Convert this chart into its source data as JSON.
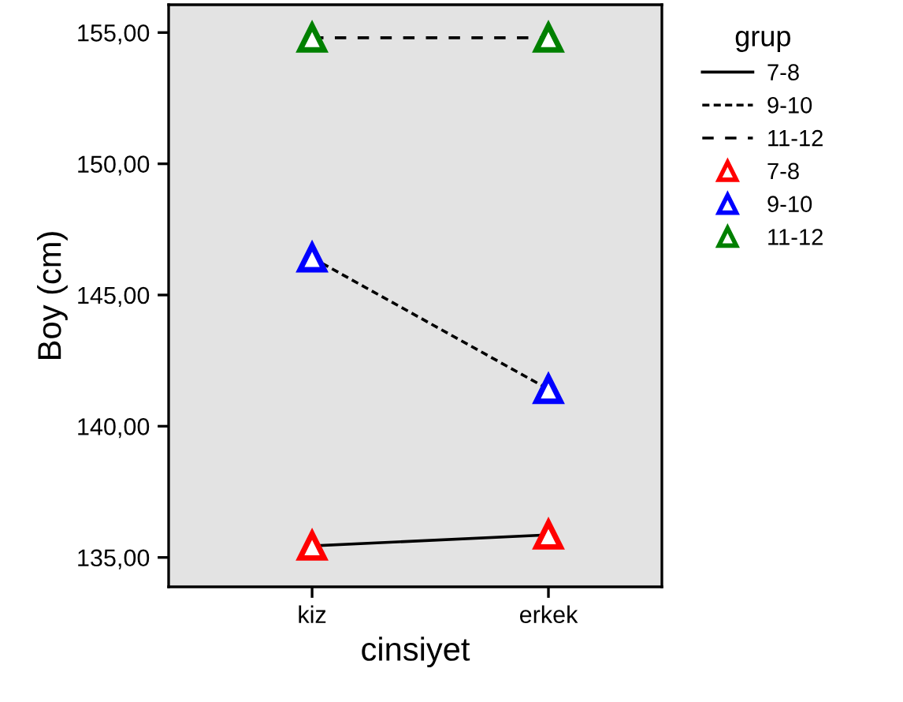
{
  "chart_data": {
    "type": "line",
    "xlabel": "cinsiyet",
    "ylabel": "Boy (cm)",
    "legend_title": "grup",
    "legend": "right",
    "marker": "triangle",
    "categories": [
      "kiz",
      "erkek"
    ],
    "series": [
      {
        "name": "7-8",
        "color": "#ff0000",
        "values": [
          135.44,
          135.86
        ],
        "line_style": "solid"
      },
      {
        "name": "9-10",
        "color": "#0000ff",
        "values": [
          146.42,
          141.41
        ],
        "line_style": "dotted"
      },
      {
        "name": "11-12",
        "color": "#008000",
        "values": [
          154.8,
          154.8
        ],
        "line_style": "dashed"
      }
    ],
    "ylim": [
      133.88,
      156.06
    ],
    "yticks": [
      {
        "value": 135,
        "label": "135,00"
      },
      {
        "value": 140,
        "label": "140,00"
      },
      {
        "value": 145,
        "label": "145,00"
      },
      {
        "value": 150,
        "label": "150,00"
      },
      {
        "value": 155,
        "label": "155,00"
      }
    ],
    "grid": false
  }
}
